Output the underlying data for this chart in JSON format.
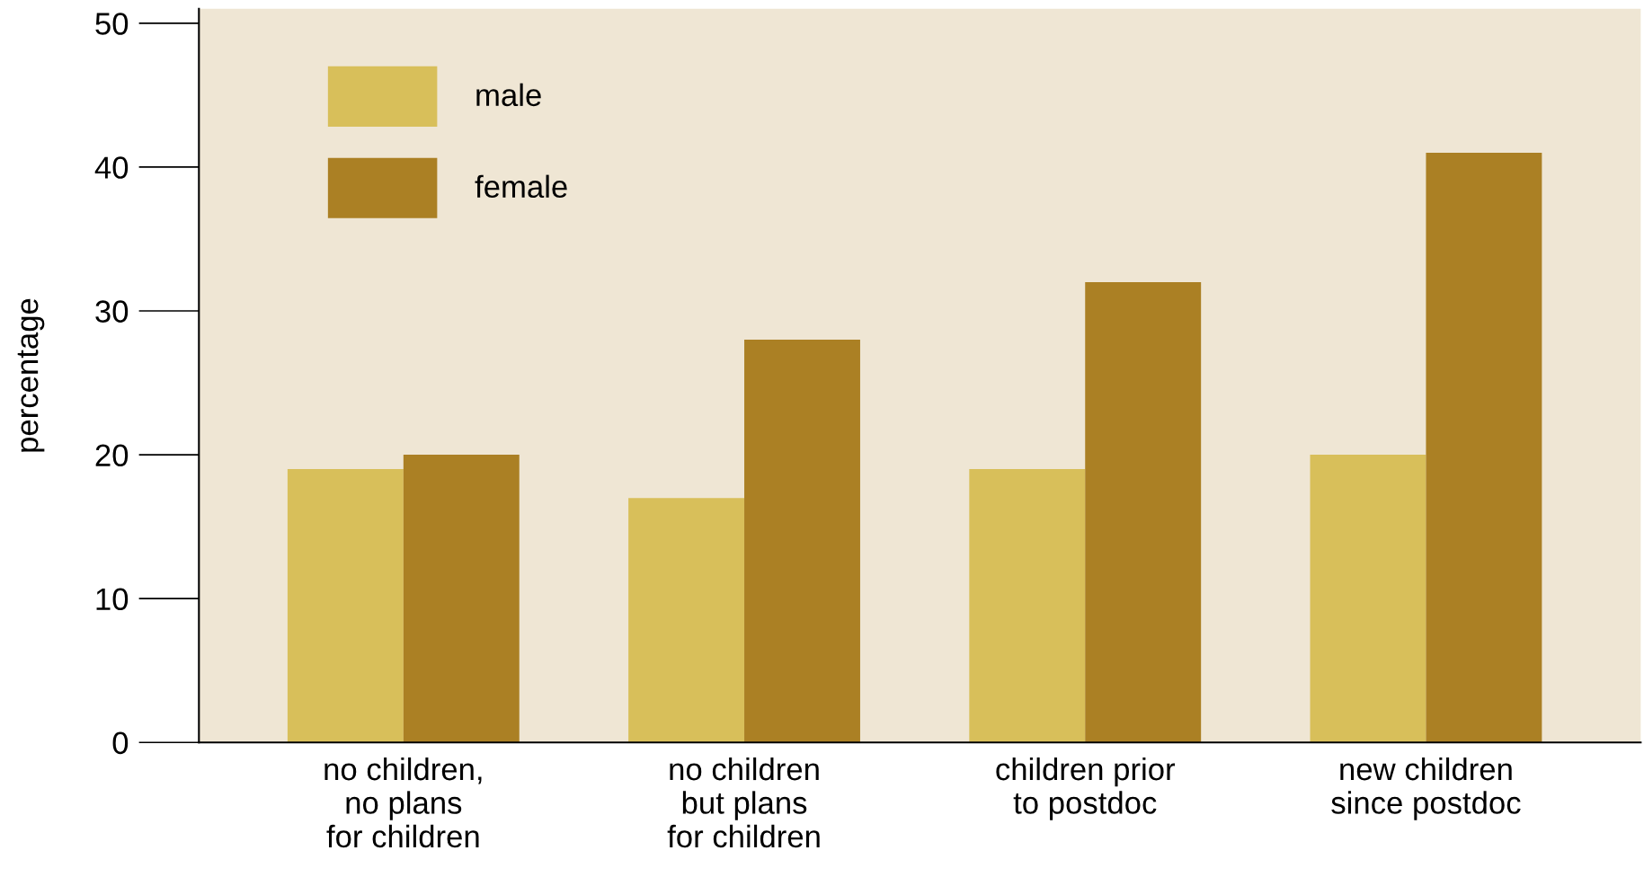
{
  "chart_data": {
    "type": "bar",
    "ylabel": "percentage",
    "categories": [
      "no children,\nno plans\nfor children",
      "no children\nbut plans\nfor children",
      "children prior\nto postdoc",
      "new children\nsince postdoc"
    ],
    "series": [
      {
        "name": "male",
        "color": "#d8bf5a",
        "values": [
          19,
          17,
          19,
          20
        ]
      },
      {
        "name": "female",
        "color": "#ab8024",
        "values": [
          20,
          28,
          32,
          41
        ]
      }
    ],
    "ylim": [
      0,
      51
    ],
    "yticks": [
      0,
      10,
      20,
      30,
      40,
      50
    ],
    "grid": false,
    "legend": "top left"
  }
}
